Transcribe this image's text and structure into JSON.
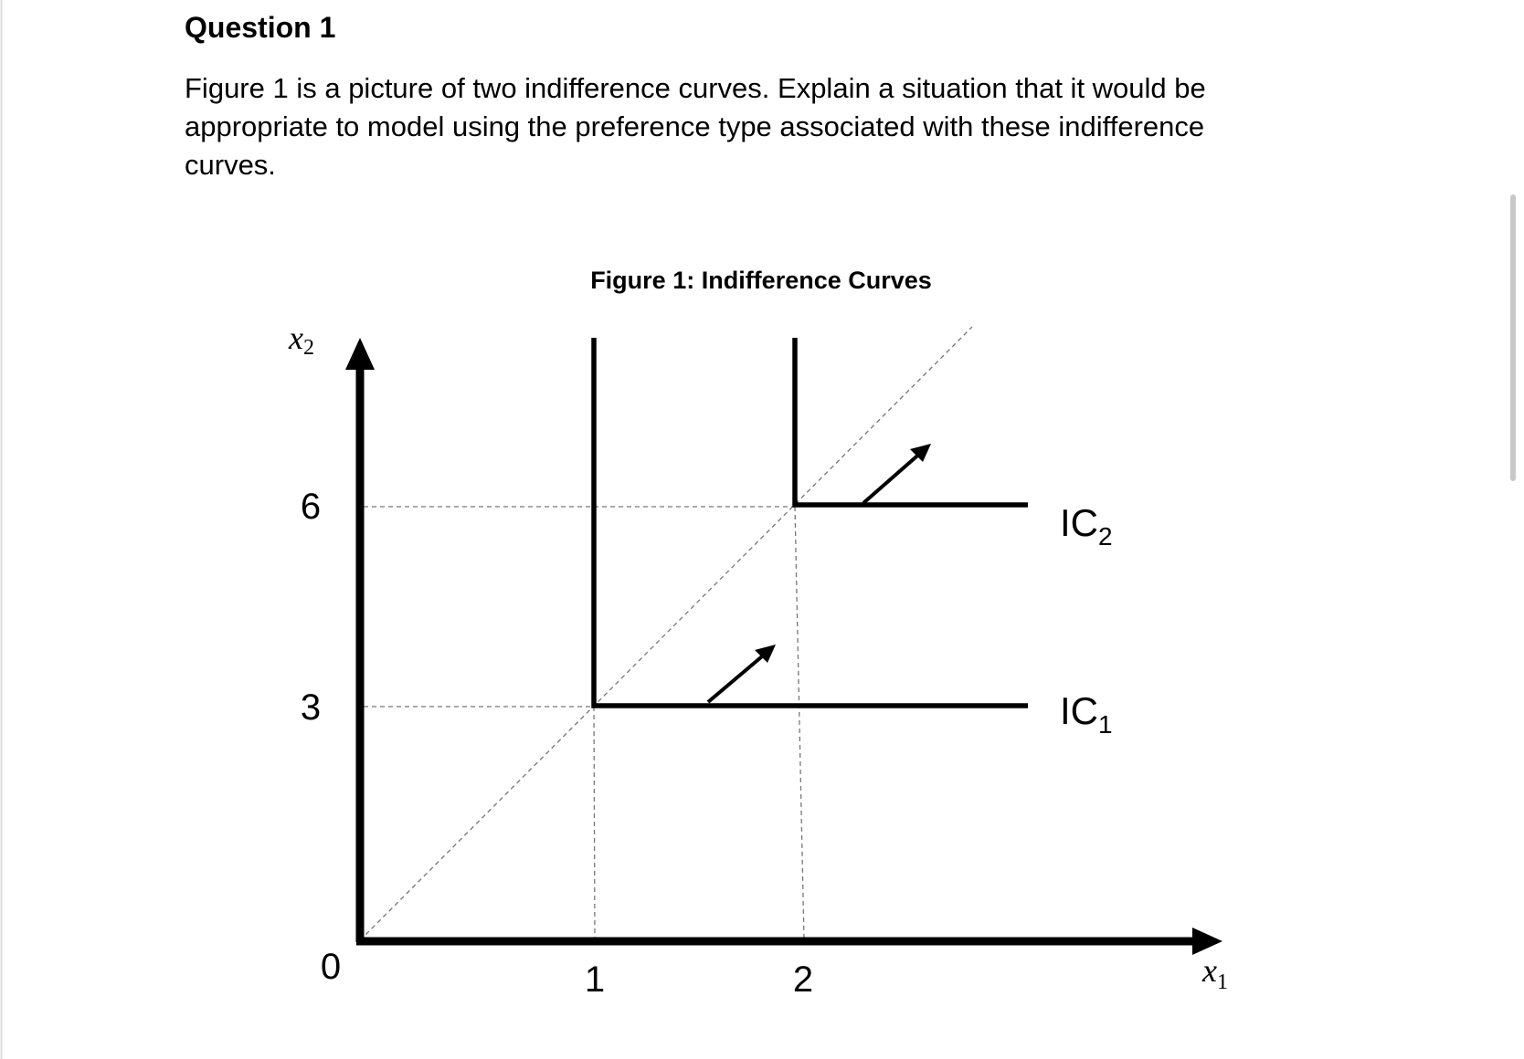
{
  "question": {
    "title": "Question 1",
    "body": [
      "Figure 1 is a picture of two indifference curves. Explain a situation that it would be",
      "appropriate to model using the preference type associated with these indifference",
      "curves."
    ]
  },
  "figure": {
    "title": "Figure 1: Indifference Curves",
    "xticks": [
      0,
      1,
      2
    ],
    "yticks": [
      0,
      3,
      6
    ],
    "x_label": {
      "main": "x",
      "sub": "1"
    },
    "y_label": {
      "main": "x",
      "sub": "2"
    },
    "curves": [
      {
        "main": "IC",
        "sub": "1"
      },
      {
        "main": "IC",
        "sub": "2"
      }
    ]
  }
}
